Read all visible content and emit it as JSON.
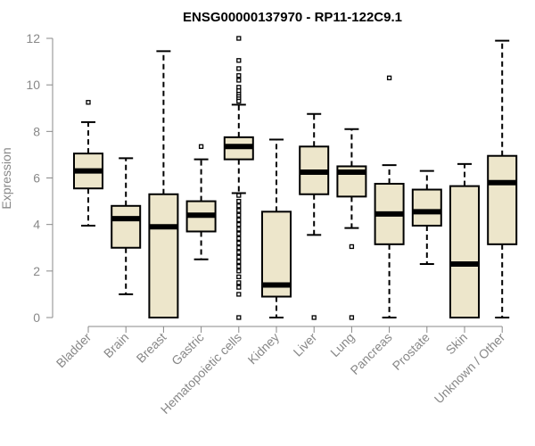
{
  "chart_data": {
    "type": "boxplot",
    "title": "ENSG00000137970 - RP11-122C9.1",
    "xlabel": "",
    "ylabel": "Expression",
    "ylim": [
      0,
      12
    ],
    "yticks": [
      0,
      2,
      4,
      6,
      8,
      10,
      12
    ],
    "grid": false,
    "colors": {
      "box_fill": "#ede6cb",
      "stroke": "#000000",
      "axis": "#888888"
    },
    "categories": [
      "Bladder",
      "Brain",
      "Breast",
      "Gastric",
      "Hematopoietic cells",
      "Kidney",
      "Liver",
      "Lung",
      "Pancreas",
      "Prostate",
      "Skin",
      "Unknown / Other"
    ],
    "boxes": [
      {
        "name": "Bladder",
        "min": 3.95,
        "q1": 5.55,
        "median": 6.3,
        "q3": 7.05,
        "max": 8.4,
        "outliers": [
          9.25
        ]
      },
      {
        "name": "Brain",
        "min": 1.0,
        "q1": 3.0,
        "median": 4.25,
        "q3": 4.8,
        "max": 6.85,
        "outliers": []
      },
      {
        "name": "Breast",
        "min": 0.0,
        "q1": 0.0,
        "median": 3.9,
        "q3": 5.3,
        "max": 11.45,
        "outliers": []
      },
      {
        "name": "Gastric",
        "min": 2.5,
        "q1": 3.7,
        "median": 4.4,
        "q3": 5.0,
        "max": 6.8,
        "outliers": [
          7.35
        ]
      },
      {
        "name": "Hematopoietic cells",
        "min": 5.35,
        "q1": 6.8,
        "median": 7.35,
        "q3": 7.75,
        "max": 9.15,
        "outliers": [
          12.0,
          11.05,
          10.7,
          10.4,
          10.2,
          9.9,
          9.75,
          9.6,
          9.5,
          9.4,
          9.3,
          5.25,
          5.0,
          4.8,
          4.6,
          4.4,
          4.2,
          4.0,
          3.8,
          3.6,
          3.4,
          3.2,
          3.0,
          2.8,
          2.6,
          2.4,
          2.2,
          2.0,
          1.75,
          1.5,
          1.3,
          1.0,
          0.0
        ]
      },
      {
        "name": "Kidney",
        "min": 0.0,
        "q1": 0.9,
        "median": 1.4,
        "q3": 4.55,
        "max": 7.65,
        "outliers": []
      },
      {
        "name": "Liver",
        "min": 3.55,
        "q1": 5.3,
        "median": 6.25,
        "q3": 7.35,
        "max": 8.75,
        "outliers": [
          0.0
        ]
      },
      {
        "name": "Lung",
        "min": 3.85,
        "q1": 5.2,
        "median": 6.25,
        "q3": 6.5,
        "max": 8.1,
        "outliers": [
          3.05,
          0.0
        ]
      },
      {
        "name": "Pancreas",
        "min": 0.0,
        "q1": 3.15,
        "median": 4.45,
        "q3": 5.75,
        "max": 6.55,
        "outliers": [
          10.3
        ]
      },
      {
        "name": "Prostate",
        "min": 2.3,
        "q1": 3.95,
        "median": 4.55,
        "q3": 5.5,
        "max": 6.3,
        "outliers": []
      },
      {
        "name": "Skin",
        "min": 0.0,
        "q1": 0.0,
        "median": 2.3,
        "q3": 5.65,
        "max": 6.6,
        "outliers": []
      },
      {
        "name": "Unknown / Other",
        "min": 0.0,
        "q1": 3.15,
        "median": 5.8,
        "q3": 6.95,
        "max": 11.9,
        "outliers": []
      }
    ]
  }
}
